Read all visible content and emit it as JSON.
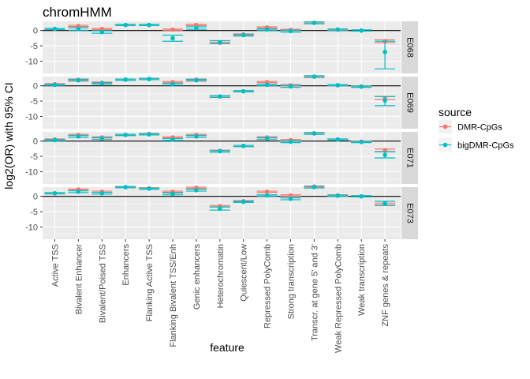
{
  "title": "chromHMM",
  "colors": {
    "DMR-CpGs": "#F8766D",
    "bigDMR-CpGs": "#00BFC4"
  },
  "chart_data": {
    "type": "scatter",
    "title": "chromHMM",
    "xlabel": "feature",
    "ylabel": "log2(OR) with 95% CI",
    "ylim": [
      -14,
      3
    ],
    "yticks": [
      0,
      -5,
      -10
    ],
    "facet_by": "epigenome",
    "panels": [
      "E068",
      "E069",
      "E071",
      "E073"
    ],
    "categories": [
      "Active TSS",
      "Bivalent Enhancer",
      "Bivalent/Poised TSS",
      "Enhancers",
      "Flanking Active TSS",
      "Flanking Bivalent TSS/Enh",
      "Genic enhancers",
      "Heterochromatin",
      "Quiescent/Low",
      "Repressed PolyComb",
      "Strong transcription",
      "Transcr. at gene 5' and 3'",
      "Weak Repressed PolyComb",
      "Weak transcription",
      "ZNF genes & repeats"
    ],
    "legend": {
      "title": "source",
      "position": "right",
      "entries": [
        "DMR-CpGs",
        "bigDMR-CpGs"
      ]
    },
    "series": [
      {
        "name": "DMR-CpGs",
        "panels": [
          {
            "panel": "E068",
            "estimate": [
              0.5,
              1.5,
              0.5,
              1.8,
              1.8,
              0.3,
              1.8,
              -4.0,
              -1.3,
              1.0,
              0.2,
              2.5,
              0.3,
              0.0,
              -3.5
            ],
            "lower": [
              0.3,
              1.3,
              0.3,
              1.6,
              1.6,
              0.1,
              1.6,
              -4.2,
              -1.5,
              0.8,
              0.0,
              2.3,
              0.1,
              -0.2,
              -4.0
            ],
            "upper": [
              0.7,
              1.7,
              0.7,
              2.0,
              2.0,
              0.5,
              2.0,
              -3.8,
              -1.1,
              1.2,
              0.4,
              2.7,
              0.5,
              0.2,
              -3.0
            ]
          },
          {
            "panel": "E069",
            "estimate": [
              0.5,
              2.0,
              1.0,
              2.0,
              2.2,
              1.2,
              2.0,
              -3.5,
              -1.8,
              1.2,
              0.2,
              3.0,
              0.2,
              -0.2,
              -4.0
            ],
            "lower": [
              0.3,
              1.8,
              0.8,
              1.8,
              2.0,
              1.0,
              1.8,
              -3.7,
              -2.0,
              1.0,
              0.0,
              2.8,
              0.0,
              -0.4,
              -4.5
            ],
            "upper": [
              0.7,
              2.2,
              1.2,
              2.2,
              2.4,
              1.4,
              2.2,
              -3.3,
              -1.6,
              1.4,
              0.4,
              3.2,
              0.4,
              0.0,
              -3.5
            ]
          },
          {
            "panel": "E071",
            "estimate": [
              0.5,
              2.0,
              1.2,
              2.0,
              2.3,
              1.2,
              2.0,
              -3.2,
              -1.6,
              1.2,
              0.3,
              2.5,
              0.5,
              -0.2,
              -3.0
            ],
            "lower": [
              0.3,
              1.8,
              1.0,
              1.8,
              2.1,
              1.0,
              1.8,
              -3.4,
              -1.8,
              1.0,
              0.1,
              2.3,
              0.3,
              -0.4,
              -3.4
            ],
            "upper": [
              0.7,
              2.2,
              1.4,
              2.2,
              2.5,
              1.4,
              2.2,
              -3.0,
              -1.4,
              1.4,
              0.5,
              2.7,
              0.7,
              0.0,
              -2.6
            ]
          },
          {
            "panel": "E073",
            "estimate": [
              1.0,
              2.2,
              1.5,
              3.0,
              2.6,
              1.5,
              2.8,
              -3.2,
              -1.6,
              1.5,
              0.3,
              3.2,
              0.3,
              0.0,
              -2.5
            ],
            "lower": [
              0.8,
              2.0,
              1.3,
              2.8,
              2.4,
              1.3,
              2.6,
              -3.4,
              -1.8,
              1.3,
              0.1,
              3.0,
              0.1,
              -0.2,
              -2.8
            ],
            "upper": [
              1.2,
              2.4,
              1.7,
              3.2,
              2.8,
              1.7,
              3.0,
              -3.0,
              -1.4,
              1.7,
              0.5,
              3.4,
              0.5,
              0.2,
              -2.2
            ]
          }
        ]
      },
      {
        "name": "bigDMR-CpGs",
        "panels": [
          {
            "panel": "E068",
            "estimate": [
              0.5,
              0.5,
              -0.5,
              1.8,
              1.8,
              -2.5,
              0.8,
              -3.8,
              -1.5,
              0.3,
              -0.2,
              2.5,
              0.3,
              0.0,
              -7.0
            ],
            "lower": [
              0.3,
              0.1,
              -0.9,
              1.6,
              1.6,
              -3.5,
              0.4,
              -4.3,
              -1.8,
              0.1,
              -0.5,
              2.2,
              0.1,
              -0.2,
              -12.5
            ],
            "upper": [
              0.7,
              0.9,
              -0.1,
              2.0,
              2.0,
              -1.5,
              1.2,
              -3.3,
              -1.2,
              0.5,
              0.1,
              2.8,
              0.5,
              0.2,
              -3.5
            ]
          },
          {
            "panel": "E069",
            "estimate": [
              0.3,
              1.8,
              0.8,
              2.0,
              2.2,
              0.5,
              1.8,
              -3.5,
              -1.8,
              0.3,
              -0.2,
              3.0,
              0.2,
              -0.3,
              -4.8
            ],
            "lower": [
              0.1,
              1.5,
              0.5,
              1.8,
              2.0,
              0.2,
              1.5,
              -3.8,
              -2.0,
              0.1,
              -0.5,
              2.7,
              0.0,
              -0.5,
              -6.5
            ],
            "upper": [
              0.5,
              2.1,
              1.1,
              2.2,
              2.4,
              0.8,
              2.1,
              -3.2,
              -1.6,
              0.5,
              0.1,
              3.3,
              0.4,
              -0.1,
              -3.5
            ]
          },
          {
            "panel": "E071",
            "estimate": [
              0.3,
              1.5,
              0.8,
              2.0,
              2.2,
              0.5,
              1.5,
              -3.3,
              -1.6,
              0.8,
              -0.2,
              2.5,
              0.5,
              -0.3,
              -4.5
            ],
            "lower": [
              0.1,
              1.2,
              0.5,
              1.8,
              2.0,
              0.2,
              1.2,
              -3.6,
              -1.8,
              0.5,
              -0.5,
              2.2,
              0.3,
              -0.5,
              -5.5
            ],
            "upper": [
              0.5,
              1.8,
              1.1,
              2.2,
              2.4,
              0.8,
              1.8,
              -3.0,
              -1.4,
              1.1,
              0.1,
              2.8,
              0.7,
              -0.1,
              -3.5
            ]
          },
          {
            "panel": "E073",
            "estimate": [
              1.0,
              1.5,
              1.0,
              3.0,
              2.5,
              0.8,
              2.0,
              -4.0,
              -1.8,
              0.3,
              -0.8,
              3.0,
              0.2,
              0.0,
              -2.3
            ],
            "lower": [
              0.8,
              1.2,
              0.7,
              2.8,
              2.3,
              0.5,
              1.7,
              -4.5,
              -2.0,
              0.1,
              -1.1,
              2.7,
              0.0,
              -0.2,
              -3.0
            ],
            "upper": [
              1.2,
              1.8,
              1.3,
              3.2,
              2.7,
              1.1,
              2.3,
              -3.5,
              -1.6,
              0.5,
              -0.5,
              3.3,
              0.4,
              0.2,
              -1.6
            ]
          }
        ]
      }
    ]
  }
}
